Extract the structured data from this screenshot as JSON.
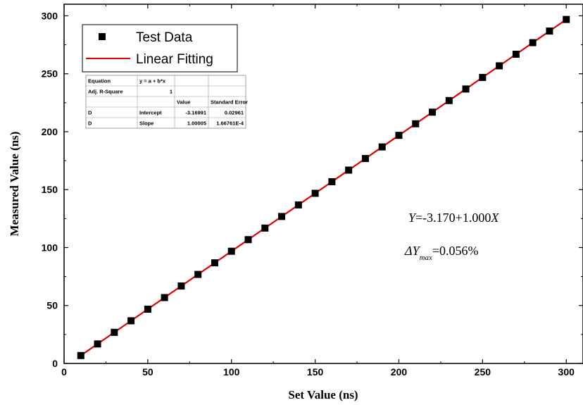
{
  "chart_data": {
    "type": "scatter",
    "xlabel": "Set Value (ns)",
    "ylabel": "Measured Value (ns)",
    "xlim": [
      0,
      310
    ],
    "ylim": [
      0,
      310
    ],
    "xticks": [
      0,
      50,
      100,
      150,
      200,
      250,
      300
    ],
    "yticks": [
      0,
      50,
      100,
      150,
      200,
      250,
      300
    ],
    "grid": false,
    "legend_position": "top-left",
    "series": [
      {
        "name": "Test Data",
        "kind": "scatter",
        "color": "#000000",
        "marker": "square",
        "x": [
          10,
          20,
          30,
          40,
          50,
          60,
          70,
          80,
          90,
          100,
          110,
          120,
          130,
          140,
          150,
          160,
          170,
          180,
          190,
          200,
          210,
          220,
          230,
          240,
          250,
          260,
          270,
          280,
          290,
          300
        ],
        "y": [
          6.83,
          16.83,
          26.83,
          36.83,
          46.83,
          56.83,
          66.83,
          76.83,
          86.83,
          96.83,
          106.83,
          116.83,
          126.83,
          136.83,
          146.83,
          156.84,
          166.84,
          176.84,
          186.84,
          196.84,
          206.84,
          216.84,
          226.84,
          236.84,
          246.84,
          256.84,
          266.84,
          276.84,
          286.85,
          296.85
        ]
      },
      {
        "name": "Linear Fitting",
        "kind": "line",
        "color": "#e00000",
        "intercept": -3.16991,
        "slope": 1.00005,
        "x_range": [
          10,
          300
        ]
      }
    ],
    "fit_table": {
      "rows": [
        [
          "Equation",
          "y = a + b*x",
          "",
          ""
        ],
        [
          "Adj. R-Square",
          "1",
          "",
          ""
        ],
        [
          "",
          "",
          "Value",
          "Standard Error"
        ],
        [
          "D",
          "Intercept",
          "-3.16991",
          "0.02961"
        ],
        [
          "D",
          "Slope",
          "1.00005",
          "1.66761E-4"
        ]
      ]
    },
    "annotations": {
      "equation": {
        "y_sym": "Y",
        "rest": "=-3.170+1.000",
        "x_sym": "X"
      },
      "delta": {
        "delta_y": "ΔY",
        "sub": "max",
        "rest": "=0.056%"
      }
    }
  }
}
